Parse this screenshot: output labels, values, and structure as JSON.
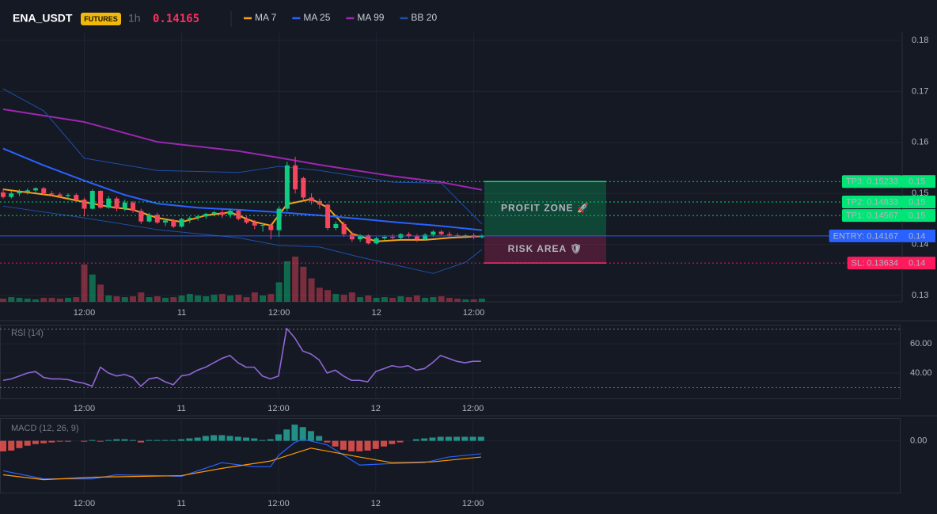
{
  "chart_data": [
    {
      "type": "candlestick",
      "title": "ENA_USDT",
      "badge": "FUTURES",
      "interval": "1h",
      "last_price": 0.14165,
      "up_color": "#0ecb81",
      "down_color": "#f6465d",
      "grid": true,
      "x": [
        0,
        1,
        2,
        3,
        4,
        5,
        6,
        7,
        8,
        9,
        10,
        11,
        12,
        13,
        14,
        15,
        16,
        17,
        18,
        19,
        20,
        21,
        22,
        23,
        24,
        25,
        26,
        27,
        28,
        29,
        30,
        31,
        32,
        33,
        34,
        35,
        36,
        37,
        38,
        39,
        40,
        41,
        42,
        43,
        44,
        45,
        46,
        47,
        48,
        49,
        50,
        51,
        52,
        53,
        54,
        55,
        56,
        57,
        58,
        59
      ],
      "open": [
        0.1502,
        0.1493,
        0.15,
        0.1503,
        0.1506,
        0.151,
        0.15,
        0.1498,
        0.1495,
        0.1497,
        0.1488,
        0.147,
        0.1505,
        0.1472,
        0.149,
        0.147,
        0.1482,
        0.1466,
        0.1445,
        0.1458,
        0.1443,
        0.1447,
        0.1435,
        0.145,
        0.1452,
        0.1455,
        0.146,
        0.1463,
        0.1458,
        0.1466,
        0.145,
        0.1443,
        0.1437,
        0.1438,
        0.1428,
        0.147,
        0.1555,
        0.153,
        0.1492,
        0.1485,
        0.1478,
        0.1432,
        0.144,
        0.142,
        0.141,
        0.1418,
        0.1402,
        0.1412,
        0.1415,
        0.1413,
        0.142,
        0.1416,
        0.141,
        0.1419,
        0.1425,
        0.142,
        0.1418,
        0.1416,
        0.1418,
        0.1414
      ],
      "high": [
        0.151,
        0.1505,
        0.1508,
        0.151,
        0.1512,
        0.1513,
        0.1505,
        0.1502,
        0.15,
        0.15,
        0.1492,
        0.1508,
        0.1506,
        0.1495,
        0.1494,
        0.1488,
        0.1485,
        0.147,
        0.1462,
        0.1462,
        0.145,
        0.145,
        0.1452,
        0.1455,
        0.1458,
        0.1462,
        0.1466,
        0.1468,
        0.147,
        0.1468,
        0.1455,
        0.1448,
        0.1442,
        0.144,
        0.1475,
        0.1562,
        0.1572,
        0.1533,
        0.15,
        0.149,
        0.148,
        0.1445,
        0.1445,
        0.1425,
        0.142,
        0.142,
        0.1415,
        0.1418,
        0.142,
        0.1422,
        0.1424,
        0.142,
        0.1422,
        0.1428,
        0.1428,
        0.1425,
        0.1422,
        0.142,
        0.1422,
        0.142
      ],
      "low": [
        0.149,
        0.149,
        0.1495,
        0.1498,
        0.1502,
        0.1497,
        0.1494,
        0.1492,
        0.1488,
        0.1485,
        0.1455,
        0.1468,
        0.147,
        0.147,
        0.1465,
        0.1465,
        0.1462,
        0.144,
        0.1443,
        0.144,
        0.1436,
        0.1432,
        0.1433,
        0.1442,
        0.1447,
        0.145,
        0.1455,
        0.1452,
        0.1452,
        0.1447,
        0.144,
        0.143,
        0.1425,
        0.141,
        0.1415,
        0.1465,
        0.15,
        0.1488,
        0.1478,
        0.147,
        0.1428,
        0.1428,
        0.1415,
        0.1405,
        0.1405,
        0.14,
        0.14,
        0.1408,
        0.141,
        0.141,
        0.1412,
        0.1405,
        0.1408,
        0.1415,
        0.1418,
        0.1415,
        0.1414,
        0.1412,
        0.141,
        0.1412
      ],
      "close": [
        0.1493,
        0.15,
        0.1503,
        0.1506,
        0.151,
        0.15,
        0.1498,
        0.1495,
        0.1497,
        0.1488,
        0.147,
        0.1505,
        0.1472,
        0.149,
        0.147,
        0.1482,
        0.1466,
        0.1445,
        0.1458,
        0.1443,
        0.1447,
        0.1435,
        0.145,
        0.1452,
        0.1455,
        0.146,
        0.1463,
        0.1458,
        0.1466,
        0.145,
        0.1443,
        0.1437,
        0.1438,
        0.1428,
        0.147,
        0.1555,
        0.1508,
        0.1492,
        0.1485,
        0.1478,
        0.1432,
        0.144,
        0.142,
        0.141,
        0.1418,
        0.1402,
        0.1412,
        0.1415,
        0.1413,
        0.142,
        0.1416,
        0.141,
        0.1419,
        0.1425,
        0.142,
        0.1418,
        0.1416,
        0.1418,
        0.1414,
        0.1417
      ],
      "volume": [
        4,
        6,
        5,
        4,
        3,
        5,
        5,
        4,
        5,
        6,
        48,
        35,
        22,
        8,
        7,
        6,
        7,
        12,
        6,
        7,
        5,
        6,
        8,
        10,
        8,
        7,
        9,
        10,
        8,
        9,
        6,
        12,
        8,
        10,
        25,
        52,
        58,
        45,
        30,
        18,
        15,
        10,
        9,
        12,
        6,
        8,
        5,
        6,
        5,
        7,
        6,
        8,
        5,
        6,
        7,
        5,
        4,
        3,
        3,
        4
      ],
      "series": [
        {
          "name": "MA 7",
          "color": "#f7a21b",
          "x": [
            0,
            3,
            6,
            10,
            13,
            16,
            19,
            22,
            25,
            28,
            31,
            33,
            35,
            38,
            40,
            43,
            46,
            49,
            52,
            55,
            59
          ],
          "values": [
            0.1508,
            0.1502,
            0.1496,
            0.1483,
            0.1474,
            0.1468,
            0.1452,
            0.1444,
            0.1457,
            0.1463,
            0.1444,
            0.1437,
            0.1479,
            0.1489,
            0.1472,
            0.1421,
            0.1406,
            0.1409,
            0.1409,
            0.1413,
            0.1416
          ]
        },
        {
          "name": "MA 25",
          "color": "#2962ff",
          "x": [
            0,
            5,
            10,
            15,
            19,
            24,
            29,
            34,
            39,
            44,
            48,
            54,
            59
          ],
          "values": [
            0.1588,
            0.1555,
            0.1525,
            0.1497,
            0.148,
            0.1472,
            0.1468,
            0.1463,
            0.1457,
            0.145,
            0.1444,
            0.1436,
            0.1428
          ]
        },
        {
          "name": "MA 99",
          "color": "#9c27b0",
          "x": [
            0,
            10,
            19,
            29,
            34,
            39,
            48,
            54,
            59
          ],
          "values": [
            0.1665,
            0.164,
            0.1601,
            0.1583,
            0.157,
            0.1556,
            0.1534,
            0.1522,
            0.1507
          ]
        },
        {
          "name": "BB 20",
          "color": "#1e4fa8",
          "x": [
            0,
            5,
            10,
            19,
            29,
            34,
            39,
            48,
            54,
            59
          ],
          "values": [
            0.1705,
            0.1662,
            0.1569,
            0.1545,
            0.1541,
            0.1553,
            0.1545,
            0.1522,
            0.152,
            0.144
          ],
          "lower_x": [
            0,
            10,
            19,
            29,
            34,
            39,
            44,
            53,
            57,
            59
          ],
          "lower": [
            0.1475,
            0.1452,
            0.1429,
            0.1413,
            0.1398,
            0.1395,
            0.1375,
            0.1343,
            0.1365,
            0.139
          ]
        }
      ],
      "xlim": [
        -0.39,
        110.8
      ],
      "xticks": [
        {
          "value": 10,
          "label": "12:00"
        },
        {
          "value": 22,
          "label": "11"
        },
        {
          "value": 34,
          "label": "12:00"
        },
        {
          "value": 46,
          "label": "12"
        },
        {
          "value": 58,
          "label": "12:00"
        }
      ],
      "ylim": [
        0.12876,
        0.18171
      ],
      "yticks": [
        0.13,
        0.14,
        0.15,
        0.16,
        0.17,
        0.18
      ],
      "levels": [
        {
          "label": "TP3: 0.15233",
          "value": 0.15233,
          "axis_label": "0.15",
          "color": "#00e676",
          "text_color": "#06140c"
        },
        {
          "label": "TP2: 0.14833",
          "value": 0.14833,
          "axis_label": "0.15",
          "color": "#00e676",
          "text_color": "#06140c"
        },
        {
          "label": "TP1: 0.14567",
          "value": 0.14567,
          "axis_label": "0.15",
          "color": "#00e676",
          "text_color": "#06140c"
        },
        {
          "label": "ENTRY: 0.14167",
          "value": 0.14167,
          "axis_label": "0.14",
          "color": "#2962ff",
          "text_color": "#ffffff"
        },
        {
          "label": "SL: 0.13634",
          "value": 0.13634,
          "axis_label": "0.14",
          "color": "#ff1a5e",
          "text_color": "#ffffff"
        }
      ],
      "zones": [
        {
          "label": "PROFIT ZONE 🚀",
          "color": "#00e676"
        },
        {
          "label": "RISK AREA 🛡",
          "color": "#ff2d73"
        }
      ]
    },
    {
      "type": "line",
      "title": "RSI (14)",
      "color": "#8f67d6",
      "grid": true,
      "x": [
        0,
        1,
        2,
        3,
        4,
        5,
        6,
        7,
        8,
        9,
        10,
        11,
        12,
        13,
        14,
        15,
        16,
        17,
        18,
        19,
        20,
        21,
        22,
        23,
        24,
        25,
        26,
        27,
        28,
        29,
        30,
        31,
        32,
        33,
        34,
        35,
        36,
        37,
        38,
        39,
        40,
        41,
        42,
        43,
        44,
        45,
        46,
        47,
        48,
        49,
        50,
        51,
        52,
        53,
        54,
        55,
        56,
        57,
        58,
        59
      ],
      "values": [
        35,
        36,
        38,
        40,
        41,
        37,
        36,
        36,
        35.5,
        34,
        33,
        31,
        44,
        40,
        38,
        39,
        37,
        31,
        36,
        37,
        34,
        32,
        38,
        39,
        42,
        44,
        47,
        50,
        52,
        47,
        44,
        44,
        38,
        36,
        38,
        70.5,
        64,
        55,
        53,
        49,
        40,
        42,
        38,
        35,
        35,
        34,
        41,
        43,
        45,
        44,
        45,
        42,
        43,
        47,
        52,
        50,
        48,
        47,
        48,
        48
      ],
      "bands": [
        70,
        30
      ],
      "xlim": [
        -0.39,
        110.8
      ],
      "xticks": [
        {
          "value": 10,
          "label": "12:00"
        },
        {
          "value": 22,
          "label": "11"
        },
        {
          "value": 34,
          "label": "12:00"
        },
        {
          "value": 46,
          "label": "12"
        },
        {
          "value": 58,
          "label": "12:00"
        }
      ],
      "ylim": [
        22.7,
        73
      ],
      "yticks": [
        {
          "value": 60,
          "label": "60.00"
        },
        {
          "value": 40,
          "label": "40.00"
        }
      ]
    },
    {
      "type": "bar",
      "title": "MACD (12, 26, 9)",
      "up_color": "#26a69a",
      "down_color": "#ef5350",
      "grid": true,
      "x": [
        0,
        1,
        2,
        3,
        4,
        5,
        6,
        7,
        8,
        9,
        10,
        11,
        12,
        13,
        14,
        15,
        16,
        17,
        18,
        19,
        20,
        21,
        22,
        23,
        24,
        25,
        26,
        27,
        28,
        29,
        30,
        31,
        32,
        33,
        34,
        35,
        36,
        37,
        38,
        39,
        40,
        41,
        42,
        43,
        44,
        45,
        46,
        47,
        48,
        49,
        50,
        51,
        52,
        53,
        54,
        55,
        56,
        57,
        58,
        59
      ],
      "values": [
        -0.0013,
        -0.0012,
        -0.0009,
        -0.0006,
        -0.0004,
        -0.0003,
        -0.0002,
        -0.0001,
        -0.0001,
        0,
        -0.0001,
        0.0001,
        -0.0001,
        0.0001,
        0.0002,
        0.0002,
        0.0001,
        -0.0002,
        0.0001,
        0.0001,
        0.0001,
        0.0001,
        0.0002,
        0.0003,
        0.0004,
        0.0006,
        0.0007,
        0.0007,
        0.0006,
        0.0005,
        0.0004,
        0.0003,
        0.0001,
        0.0002,
        0.0008,
        0.0014,
        0.002,
        0.0017,
        0.0012,
        0.0006,
        -0.0002,
        -0.0007,
        -0.0011,
        -0.0013,
        -0.0013,
        -0.0012,
        -0.001,
        -0.0007,
        -0.0004,
        -0.0002,
        0,
        0.0002,
        0.0003,
        0.0004,
        0.0005,
        0.0005,
        0.0005,
        0.0005,
        0.0005,
        0.0005
      ],
      "series": [
        {
          "color": "#2962ff",
          "x": [
            0,
            5,
            11,
            14,
            19,
            22,
            27,
            31,
            33,
            34,
            36,
            37,
            40,
            44,
            48,
            52,
            55,
            59
          ],
          "values": [
            -0.0037,
            -0.0047,
            -0.0047,
            -0.0042,
            -0.0043,
            -0.0044,
            -0.0027,
            -0.0032,
            -0.0032,
            -0.0018,
            -0.0002,
            0.0002,
            -0.0005,
            -0.003,
            -0.0028,
            -0.0027,
            -0.002,
            -0.0016
          ]
        },
        {
          "color": "#ff9800",
          "x": [
            0,
            5,
            11,
            22,
            27,
            33,
            38,
            44,
            48,
            53,
            59
          ],
          "values": [
            -0.0042,
            -0.0048,
            -0.0045,
            -0.0043,
            -0.0034,
            -0.0025,
            -0.0009,
            -0.002,
            -0.0027,
            -0.0026,
            -0.002
          ]
        }
      ],
      "xlim": [
        -0.39,
        110.8
      ],
      "xticks": [
        {
          "value": 10,
          "label": "12:00"
        },
        {
          "value": 22,
          "label": "11"
        },
        {
          "value": 34,
          "label": "12:00"
        },
        {
          "value": 46,
          "label": "12"
        },
        {
          "value": 58,
          "label": "12:00"
        }
      ],
      "ylim": [
        -0.0064,
        0.0028
      ],
      "yticks": [
        {
          "value": 0,
          "label": "0.00"
        }
      ]
    }
  ]
}
